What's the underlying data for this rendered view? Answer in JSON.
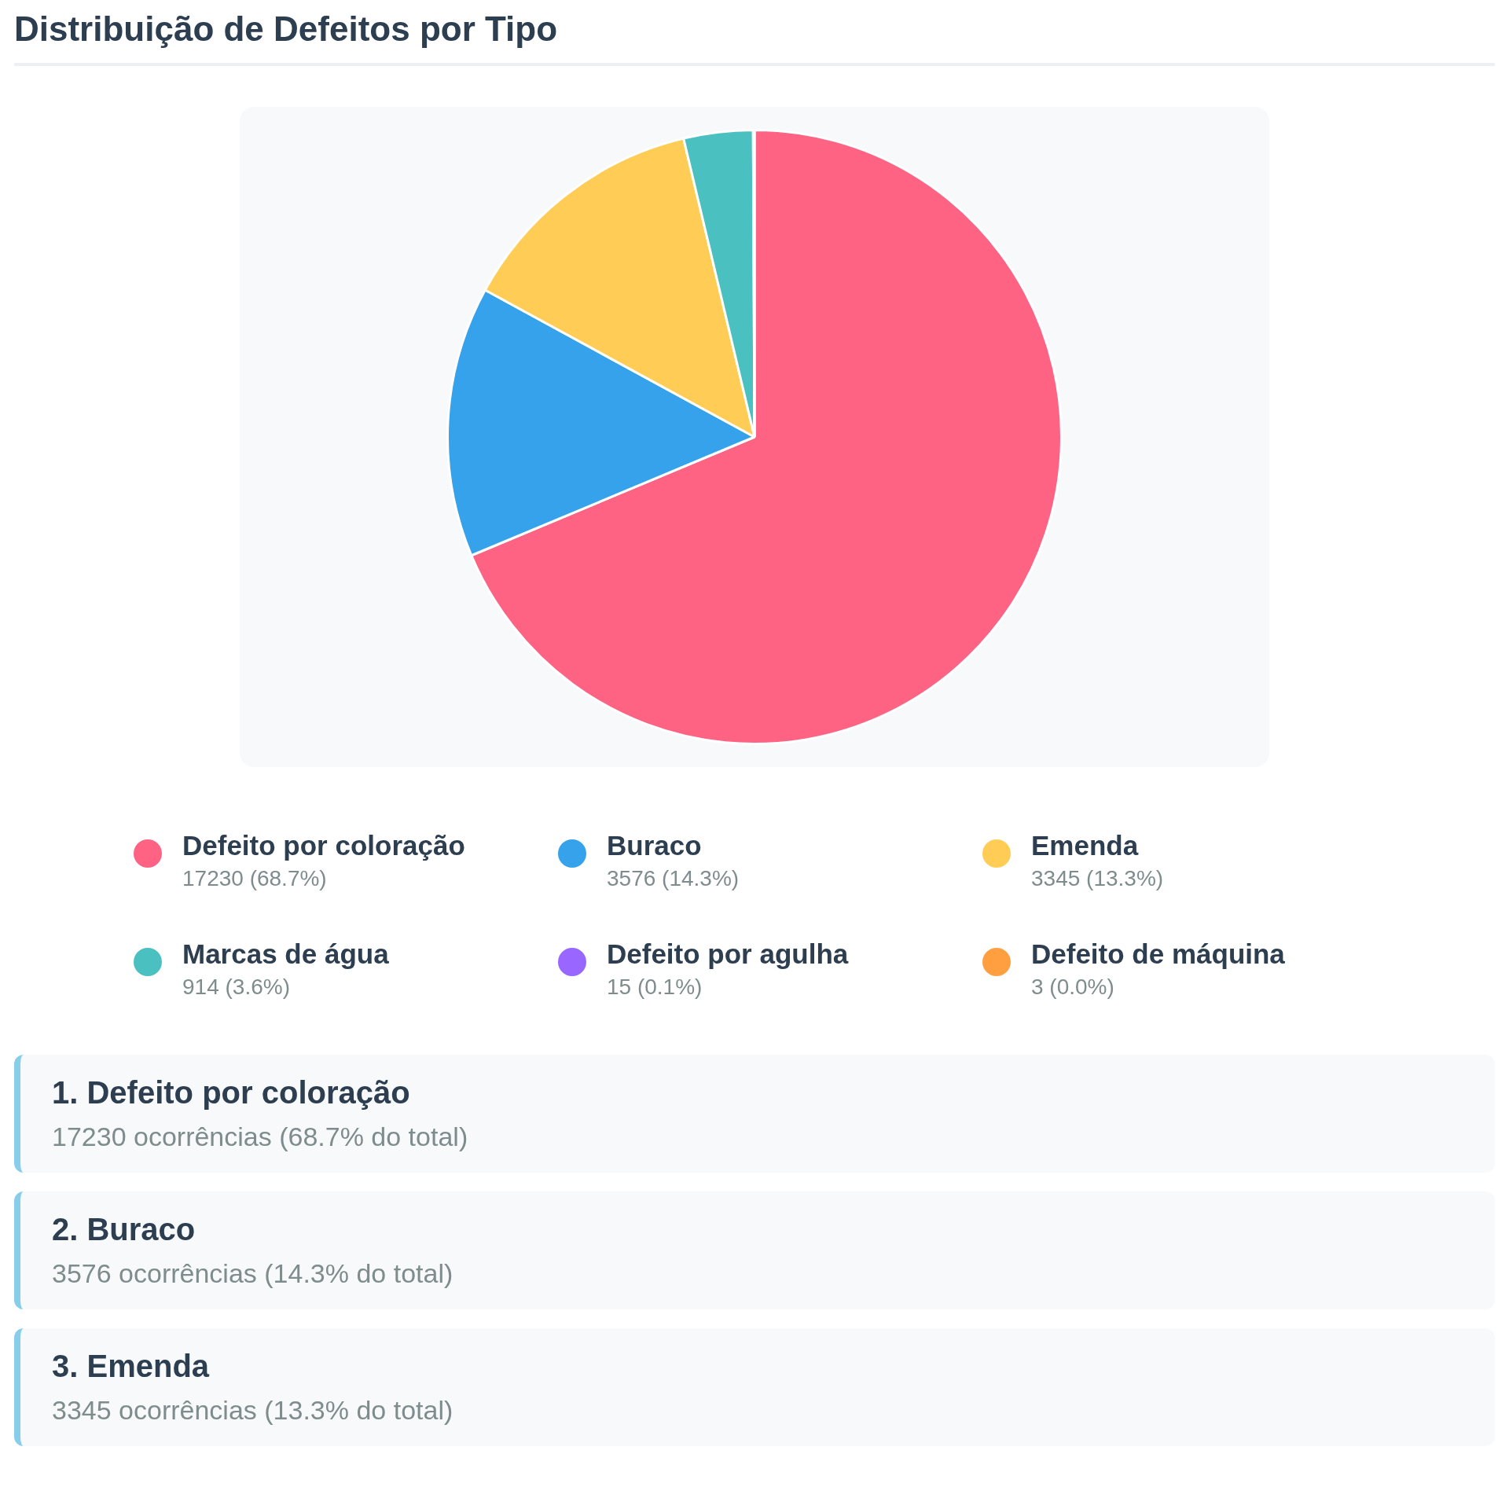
{
  "chart_data": {
    "type": "pie",
    "title": "Distribuição de Defeitos por Tipo",
    "categories": [
      "Defeito por coloração",
      "Buraco",
      "Emenda",
      "Marcas de água",
      "Defeito por agulha",
      "Defeito de máquina"
    ],
    "values": [
      17230,
      3576,
      3345,
      914,
      15,
      3
    ],
    "colors": [
      "#ff6384",
      "#36a2eb",
      "#ffcd56",
      "#4bc0c0",
      "#9966ff",
      "#ff9f40"
    ],
    "value_labels": [
      "17230 (68.7%)",
      "3576 (14.3%)",
      "3345 (13.3%)",
      "914 (3.6%)",
      "15 (0.1%)",
      "3 (0.0%)"
    ],
    "legend": "bottom",
    "annotations": [
      "1. Defeito por coloração\n17230 ocorrências (68.7% do total)",
      "2. Buraco\n3576 ocorrências (14.3% do total)",
      "3. Emenda\n3345 ocorrências (13.3% do total)"
    ]
  }
}
